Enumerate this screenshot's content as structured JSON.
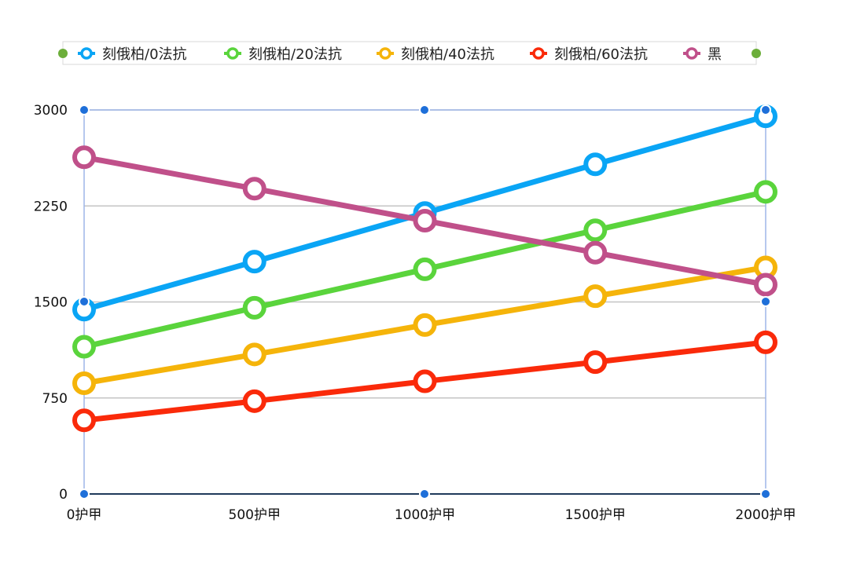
{
  "chart_data": {
    "type": "line",
    "categories": [
      "0护甲",
      "500护甲",
      "1000护甲",
      "1500护甲",
      "2000护甲"
    ],
    "ylim": [
      0,
      3000
    ],
    "yticks": [
      0,
      750,
      1500,
      2250,
      3000
    ],
    "grid": true,
    "legend_position": "top",
    "series": [
      {
        "name": "刻俄柏/0法抗",
        "color": "#0aa5f5",
        "values": [
          1440,
          1815,
          2195,
          2575,
          2950
        ]
      },
      {
        "name": "刻俄柏/20法抗",
        "color": "#5ad43c",
        "values": [
          1150,
          1455,
          1755,
          2060,
          2360
        ]
      },
      {
        "name": "刻俄柏/40法抗",
        "color": "#f5b40a",
        "values": [
          865,
          1090,
          1320,
          1545,
          1770
        ]
      },
      {
        "name": "刻俄柏/60法抗",
        "color": "#fa2a0a",
        "values": [
          575,
          725,
          880,
          1030,
          1185
        ]
      },
      {
        "name": "黑",
        "color": "#c0508a",
        "values": [
          2630,
          2385,
          2135,
          1885,
          1635
        ]
      }
    ]
  }
}
